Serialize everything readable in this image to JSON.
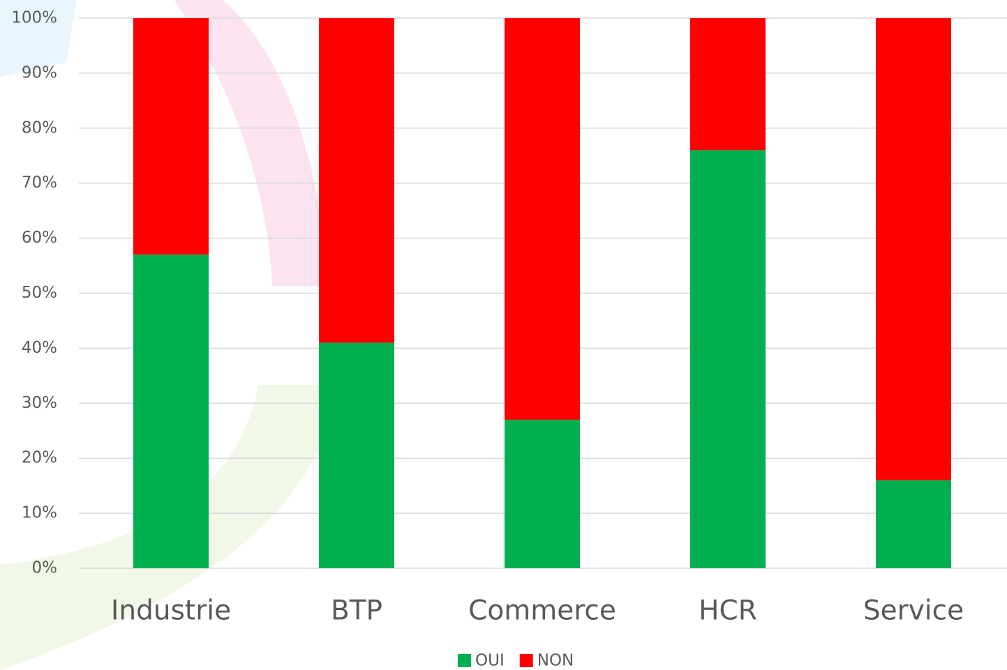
{
  "chart_data": {
    "type": "stacked_bar",
    "categories": [
      "Industrie",
      "BTP",
      "Commerce",
      "HCR",
      "Service"
    ],
    "series": [
      {
        "name": "OUI",
        "color": "#00b050",
        "values": [
          57,
          41,
          27,
          76,
          16
        ]
      },
      {
        "name": "NON",
        "color": "#ff0000",
        "values": [
          43,
          59,
          73,
          24,
          84
        ]
      }
    ],
    "ylim": [
      0,
      100
    ],
    "yticks": [
      {
        "value": 0,
        "label": "0%"
      },
      {
        "value": 10,
        "label": "10%"
      },
      {
        "value": 20,
        "label": "20%"
      },
      {
        "value": 30,
        "label": "30%"
      },
      {
        "value": 40,
        "label": "40%"
      },
      {
        "value": 50,
        "label": "50%"
      },
      {
        "value": 60,
        "label": "60%"
      },
      {
        "value": 70,
        "label": "70%"
      },
      {
        "value": 80,
        "label": "80%"
      },
      {
        "value": 90,
        "label": "90%"
      },
      {
        "value": 100,
        "label": "100%"
      }
    ],
    "grid": true,
    "legend": "bottom"
  }
}
